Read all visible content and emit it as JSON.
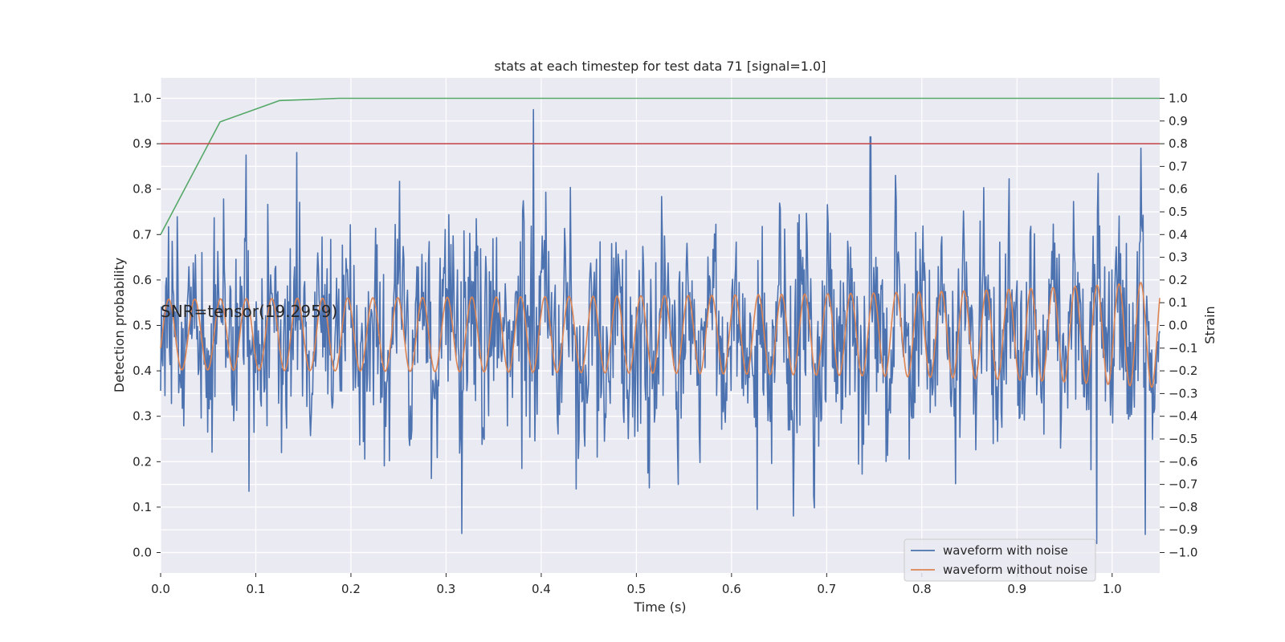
{
  "chart_data": {
    "type": "line",
    "title": "stats at each timestep for test data 71 [signal=1.0]",
    "xlabel": "Time (s)",
    "ylabel_left": "Detection probability",
    "ylabel_right": "Strain",
    "xlim": [
      0.0,
      1.05
    ],
    "ylim_left": [
      -0.045,
      1.045
    ],
    "ylim_right": [
      -1.09,
      1.09
    ],
    "x_ticks": [
      0.0,
      0.1,
      0.2,
      0.3,
      0.4,
      0.5,
      0.6,
      0.7,
      0.8,
      0.9,
      1.0
    ],
    "x_tick_labels": [
      "0.0",
      "0.1",
      "0.2",
      "0.3",
      "0.4",
      "0.5",
      "0.6",
      "0.7",
      "0.8",
      "0.9",
      "1.0"
    ],
    "y_left_ticks": [
      0.0,
      0.1,
      0.2,
      0.3,
      0.4,
      0.5,
      0.6,
      0.7,
      0.8,
      0.9,
      1.0
    ],
    "y_left_tick_labels": [
      "0.0",
      "0.1",
      "0.2",
      "0.3",
      "0.4",
      "0.5",
      "0.6",
      "0.7",
      "0.8",
      "0.9",
      "1.0"
    ],
    "y_right_ticks": [
      -1.0,
      -0.9,
      -0.8,
      -0.7,
      -0.6,
      -0.5,
      -0.4,
      -0.3,
      -0.2,
      -0.1,
      0.0,
      0.1,
      0.2,
      0.3,
      0.4,
      0.5,
      0.6,
      0.7,
      0.8,
      0.9,
      1.0
    ],
    "y_right_tick_labels": [
      "−1.0",
      "−0.9",
      "−0.8",
      "−0.7",
      "−0.6",
      "−0.5",
      "−0.4",
      "−0.3",
      "−0.2",
      "−0.1",
      "0.0",
      "0.1",
      "0.2",
      "0.3",
      "0.4",
      "0.5",
      "0.6",
      "0.7",
      "0.8",
      "0.9",
      "1.0"
    ],
    "grid": true,
    "legend_position": "bottom-right",
    "annotation": "SNR=tensor(19.2959)",
    "threshold": {
      "y": 0.9,
      "color": "#c44e52"
    },
    "detection_probability": {
      "color": "#55a868",
      "x": [
        0.0,
        0.0625,
        0.125,
        0.1875,
        0.25,
        0.3125,
        0.375,
        0.4375,
        0.5,
        0.5625,
        0.625,
        0.6875,
        0.75,
        0.8125,
        0.875,
        0.9375,
        1.0,
        1.05
      ],
      "y": [
        0.7,
        0.948,
        0.995,
        1.0,
        1.0,
        1.0,
        1.0,
        1.0,
        1.0,
        1.0,
        1.0,
        1.0,
        1.0,
        1.0,
        1.0,
        1.0,
        1.0,
        1.0
      ]
    },
    "series": [
      {
        "name": "waveform with noise",
        "color": "#4c72b0",
        "axis": "right",
        "spikes": [
          {
            "x": 0.093,
            "y": -0.73
          },
          {
            "x": 0.09,
            "y": 0.75
          },
          {
            "x": 0.127,
            "y": -0.56
          },
          {
            "x": 0.392,
            "y": 0.95
          },
          {
            "x": 0.38,
            "y": -0.63
          },
          {
            "x": 0.437,
            "y": -0.72
          },
          {
            "x": 0.544,
            "y": -0.7
          },
          {
            "x": 0.627,
            "y": -0.81
          },
          {
            "x": 0.686,
            "y": -0.75
          },
          {
            "x": 0.746,
            "y": 0.83
          },
          {
            "x": 0.984,
            "y": -0.96
          },
          {
            "x": 1.035,
            "y": -0.92
          },
          {
            "x": 1.03,
            "y": 0.78
          }
        ]
      },
      {
        "name": "waveform without noise",
        "color": "#dd8452",
        "axis": "right"
      }
    ]
  }
}
